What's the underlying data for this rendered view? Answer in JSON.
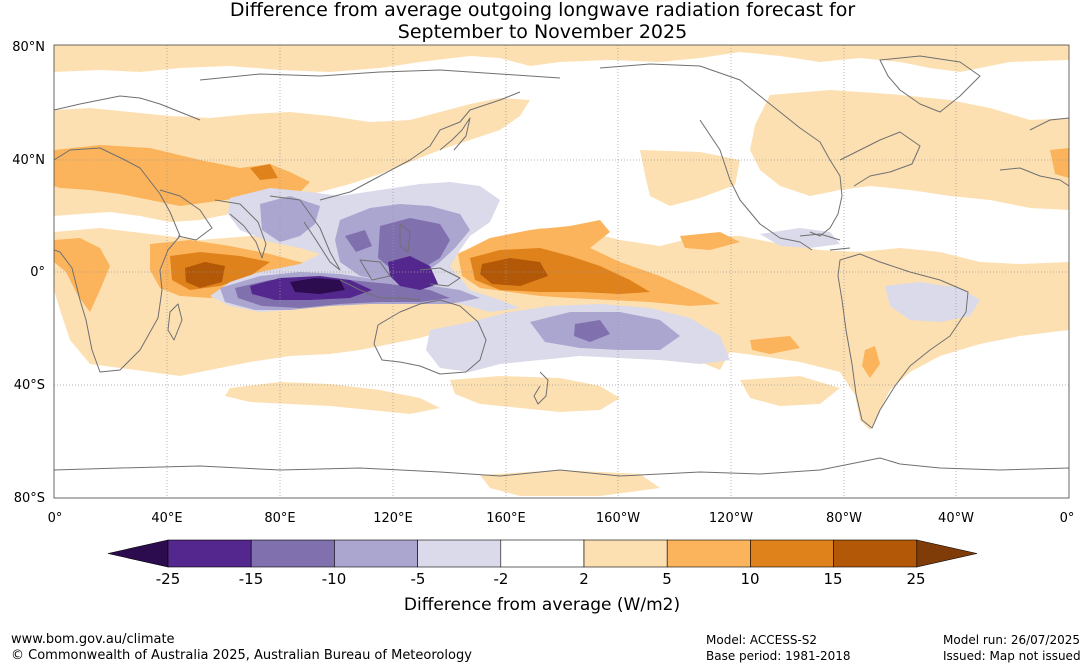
{
  "title_line1": "Difference from average outgoing longwave radiation forecast for",
  "title_line2": "September to November 2025",
  "lat_labels": [
    "80°N",
    "40°N",
    "0°",
    "40°S",
    "80°S"
  ],
  "lon_labels": [
    "0°",
    "40°E",
    "80°E",
    "120°E",
    "160°E",
    "160°W",
    "120°W",
    "80°W",
    "40°W",
    "0°"
  ],
  "colorbar": {
    "tick_labels": [
      "-25",
      "-15",
      "-10",
      "-5",
      "-2",
      "2",
      "5",
      "10",
      "15",
      "25"
    ],
    "colors": [
      "#2d0b4f",
      "#54278f",
      "#8070ae",
      "#aba6d0",
      "#dadaea",
      "#ffffff",
      "#fde0b2",
      "#fbb45b",
      "#e0821b",
      "#b35807",
      "#7f3b08"
    ],
    "label": "Difference from average (W/m2)"
  },
  "colors": {
    "positive_low": "#fde0b2",
    "positive_mid": "#fbb45b",
    "positive_high": "#e0821b",
    "positive_max": "#b35807",
    "negative_low": "#dadaea",
    "negative_mid": "#aba6d0",
    "negative_high": "#8070ae",
    "negative_max": "#54278f",
    "negative_extreme": "#2d0b4f",
    "coastline": "#707070"
  },
  "footer": {
    "website": "www.bom.gov.au/climate",
    "copyright": "© Commonwealth of Australia 2025, Australian Bureau of Meteorology",
    "model": "Model: ACCESS-S2",
    "base_period": "Base period: 1981-2018",
    "model_run": "Model run: 26/07/2025",
    "issued": "Issued: Map not issued"
  }
}
